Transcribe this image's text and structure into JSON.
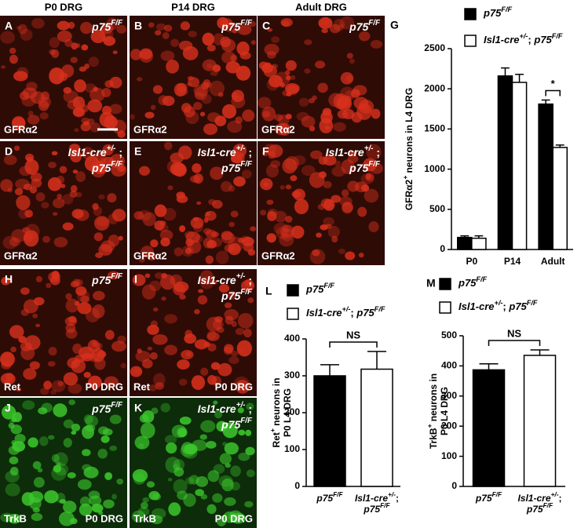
{
  "column_headers": [
    "P0 DRG",
    "P14 DRG",
    "Adult DRG"
  ],
  "image_panels": [
    {
      "letter": "A",
      "color": "#d8301c",
      "genotype": [
        [
          {
            "text": "p75",
            "style": "italic"
          },
          {
            "text": "F/F",
            "style": "sup"
          }
        ]
      ],
      "marker": "GFRα2",
      "scale_bar": true
    },
    {
      "letter": "B",
      "color": "#d8301c",
      "genotype": [
        [
          {
            "text": "p75",
            "style": "italic"
          },
          {
            "text": "F/F",
            "style": "sup"
          }
        ]
      ],
      "marker": "GFRα2"
    },
    {
      "letter": "C",
      "color": "#d8301c",
      "genotype": [
        [
          {
            "text": "p75",
            "style": "italic"
          },
          {
            "text": "F/F",
            "style": "sup"
          }
        ]
      ],
      "marker": "GFRα2"
    },
    {
      "letter": "D",
      "color": "#d8301c",
      "genotype": [
        [
          {
            "text": "Isl1-cre",
            "style": "italic"
          },
          {
            "text": "+/-",
            "style": "sup"
          },
          {
            "text": " ;"
          }
        ],
        [
          {
            "text": "p75",
            "style": "italic"
          },
          {
            "text": "F/F",
            "style": "sup"
          }
        ]
      ],
      "marker": "GFRα2"
    },
    {
      "letter": "E",
      "color": "#d8301c",
      "genotype": [
        [
          {
            "text": "Isl1-cre",
            "style": "italic"
          },
          {
            "text": "+/-",
            "style": "sup"
          },
          {
            "text": " ;"
          }
        ],
        [
          {
            "text": "p75",
            "style": "italic"
          },
          {
            "text": "F/F",
            "style": "sup"
          }
        ]
      ],
      "marker": "GFRα2"
    },
    {
      "letter": "F",
      "color": "#d8301c",
      "genotype": [
        [
          {
            "text": "Isl1-cre",
            "style": "italic"
          },
          {
            "text": "+/-",
            "style": "sup"
          },
          {
            "text": " ;"
          }
        ],
        [
          {
            "text": "p75",
            "style": "italic"
          },
          {
            "text": "F/F",
            "style": "sup"
          }
        ]
      ],
      "marker": "GFRα2"
    },
    {
      "letter": "H",
      "color": "#d8301c",
      "genotype": [
        [
          {
            "text": "p75",
            "style": "italic"
          },
          {
            "text": "F/F",
            "style": "sup"
          }
        ]
      ],
      "marker": "Ret",
      "region": "P0 DRG"
    },
    {
      "letter": "I",
      "color": "#d8301c",
      "genotype": [
        [
          {
            "text": "Isl1-cre",
            "style": "italic"
          },
          {
            "text": "+/-",
            "style": "sup"
          },
          {
            "text": " ;"
          }
        ],
        [
          {
            "text": "p75",
            "style": "italic"
          },
          {
            "text": "F/F",
            "style": "sup"
          }
        ]
      ],
      "marker": "Ret",
      "region": "P0 DRG"
    },
    {
      "letter": "J",
      "color": "#3cc82c",
      "genotype": [
        [
          {
            "text": "p75",
            "style": "italic"
          },
          {
            "text": "F/F",
            "style": "sup"
          }
        ]
      ],
      "marker": "TrkB",
      "region": "P0 DRG"
    },
    {
      "letter": "K",
      "color": "#3cc82c",
      "genotype": [
        [
          {
            "text": "Isl1-cre",
            "style": "italic"
          },
          {
            "text": "+/-",
            "style": "sup"
          },
          {
            "text": " ;"
          }
        ],
        [
          {
            "text": "p75",
            "style": "italic"
          },
          {
            "text": "F/F",
            "style": "sup"
          }
        ]
      ],
      "marker": "TrkB",
      "region": "P0 DRG"
    }
  ],
  "chart_data": [
    {
      "type": "bar",
      "panel": "G",
      "y_label": [
        [
          {
            "text": "GFRα2"
          },
          {
            "text": "+",
            "style": "sup"
          },
          {
            "text": " neurons in L4 DRG"
          }
        ]
      ],
      "categories": [
        "P0",
        "P14",
        "Adult"
      ],
      "series": [
        {
          "name": [
            [
              {
                "text": "p75",
                "style": "italic"
              },
              {
                "text": "F/F",
                "style": "sup"
              }
            ]
          ],
          "color": "#000000",
          "values": [
            150,
            2160,
            1810
          ],
          "errors": [
            20,
            100,
            50
          ]
        },
        {
          "name": [
            [
              {
                "text": "Isl1-cre",
                "style": "italic"
              },
              {
                "text": "+/-",
                "style": "sup"
              },
              {
                "text": "; "
              },
              {
                "text": "p75",
                "style": "italic"
              },
              {
                "text": "F/F",
                "style": "sup"
              }
            ]
          ],
          "color": "#ffffff",
          "values": [
            140,
            2080,
            1270
          ],
          "errors": [
            30,
            100,
            30
          ]
        }
      ],
      "ylim": [
        0,
        2500
      ],
      "yticks": [
        0,
        500,
        1000,
        1500,
        2000,
        2500
      ],
      "significance": [
        {
          "text": "*",
          "category": "Adult"
        }
      ]
    },
    {
      "type": "bar",
      "panel": "L",
      "y_label": [
        [
          {
            "text": "Ret"
          },
          {
            "text": "+",
            "style": "sup"
          },
          {
            "text": " neurons in"
          }
        ],
        [
          {
            "text": "P0 L4 DRG"
          }
        ]
      ],
      "legend": [
        {
          "name": [
            [
              {
                "text": "p75",
                "style": "italic"
              },
              {
                "text": "F/F",
                "style": "sup"
              }
            ]
          ],
          "color": "#000000"
        },
        {
          "name": [
            [
              {
                "text": "Isl1-cre",
                "style": "italic"
              },
              {
                "text": "+/-",
                "style": "sup"
              },
              {
                "text": "; "
              },
              {
                "text": "p75",
                "style": "italic"
              },
              {
                "text": "F/F",
                "style": "sup"
              }
            ]
          ],
          "color": "#ffffff"
        }
      ],
      "categories": [
        [
          [
            {
              "text": "p75",
              "style": "italic"
            },
            {
              "text": "F/F",
              "style": "sup"
            }
          ]
        ],
        [
          [
            {
              "text": "Isl1-cre",
              "style": "italic"
            },
            {
              "text": "+/-",
              "style": "sup"
            },
            {
              "text": ";"
            }
          ],
          [
            {
              "text": "p75",
              "style": "italic"
            },
            {
              "text": "F/F",
              "style": "sup"
            }
          ]
        ]
      ],
      "values": [
        300,
        318
      ],
      "errors": [
        30,
        48
      ],
      "ylim": [
        0,
        400
      ],
      "yticks": [
        0,
        100,
        200,
        300,
        400
      ],
      "significance": [
        {
          "text": "NS"
        }
      ]
    },
    {
      "type": "bar",
      "panel": "M",
      "y_label": [
        [
          {
            "text": "TrkB"
          },
          {
            "text": "+",
            "style": "sup"
          },
          {
            "text": " neurons in"
          }
        ],
        [
          {
            "text": "P0 L4 DRG"
          }
        ]
      ],
      "legend": [
        {
          "name": [
            [
              {
                "text": "p75",
                "style": "italic"
              },
              {
                "text": "F/F",
                "style": "sup"
              }
            ]
          ],
          "color": "#000000"
        },
        {
          "name": [
            [
              {
                "text": "Isl1-cre",
                "style": "italic"
              },
              {
                "text": "+/-",
                "style": "sup"
              },
              {
                "text": "; "
              },
              {
                "text": "p75",
                "style": "italic"
              },
              {
                "text": "F/F",
                "style": "sup"
              }
            ]
          ],
          "color": "#ffffff"
        }
      ],
      "categories": [
        [
          [
            {
              "text": "p75",
              "style": "italic"
            },
            {
              "text": "F/F",
              "style": "sup"
            }
          ]
        ],
        [
          [
            {
              "text": "Isl1-cre",
              "style": "italic"
            },
            {
              "text": "+/-",
              "style": "sup"
            },
            {
              "text": ";"
            }
          ],
          [
            {
              "text": "p75",
              "style": "italic"
            },
            {
              "text": "F/F",
              "style": "sup"
            }
          ]
        ]
      ],
      "values": [
        387,
        435
      ],
      "errors": [
        20,
        18
      ],
      "ylim": [
        0,
        500
      ],
      "yticks": [
        0,
        100,
        200,
        300,
        400,
        500
      ],
      "significance": [
        {
          "text": "NS"
        }
      ]
    }
  ]
}
